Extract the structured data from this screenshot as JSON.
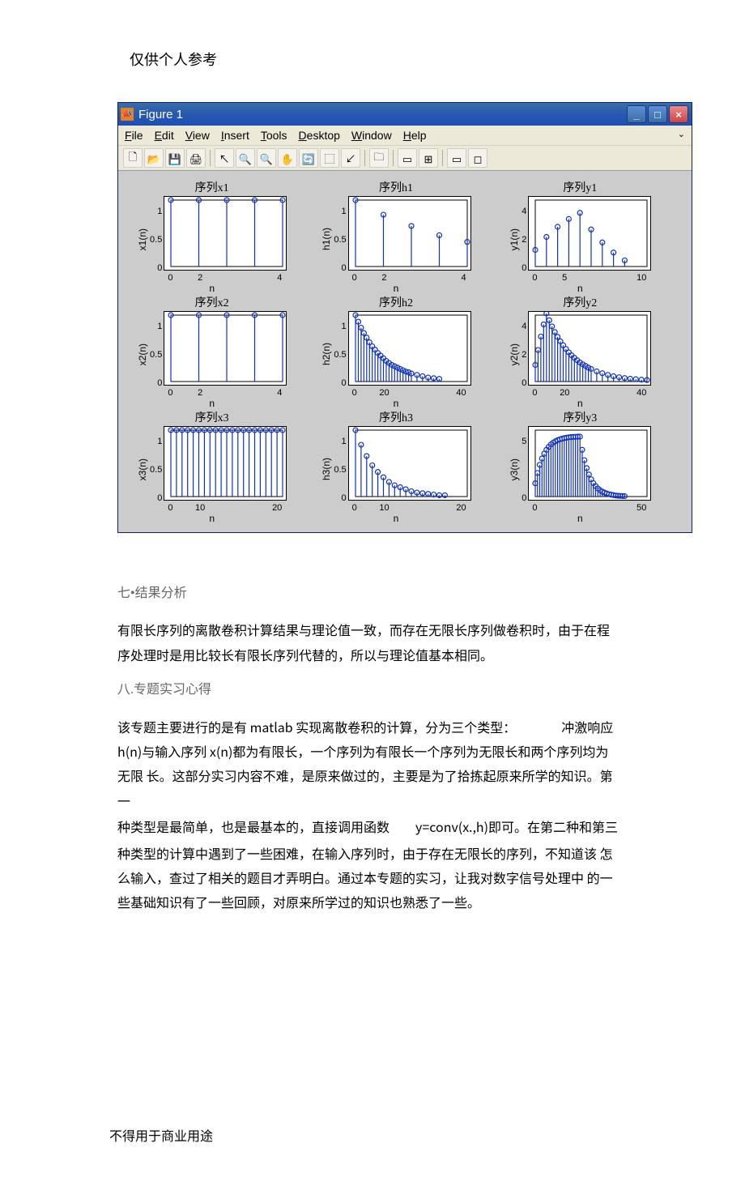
{
  "header_note": "仅供个人参考",
  "footer_note": "不得用于商业用途",
  "window": {
    "icon_letter": "📣",
    "title": "Figure 1",
    "buttons": {
      "min": "_",
      "max": "□",
      "close": "×"
    }
  },
  "menubar": {
    "items": [
      "File",
      "Edit",
      "View",
      "Insert",
      "Tools",
      "Desktop",
      "Window",
      "Help"
    ],
    "underlines": [
      0,
      0,
      0,
      0,
      0,
      0,
      0,
      0
    ]
  },
  "toolbar": {
    "icons": [
      "🗋",
      "📂",
      "💾",
      "🖨",
      "|",
      "↖",
      "🔍",
      "🔍",
      "✋",
      "🔄",
      "⬚",
      "↙",
      "|",
      "🗀",
      "|",
      "▭",
      "⊞",
      "|",
      "▭",
      "◻"
    ]
  },
  "chart_colors": {
    "series": "#1030c0",
    "axis": "#000000",
    "bg": "#ffffff",
    "fig_bg": "#cccccc"
  },
  "subplots": [
    {
      "title": "序列x1",
      "ylabel": "x1(n)",
      "xlabel": "n",
      "xlim": [
        0,
        4
      ],
      "ylim": [
        0,
        1
      ],
      "xticks": [
        0,
        2,
        4
      ],
      "yticks": [
        0,
        0.5,
        1
      ],
      "stems": [
        [
          0,
          1
        ],
        [
          1,
          1
        ],
        [
          2,
          1
        ],
        [
          3,
          1
        ],
        [
          4,
          1
        ]
      ]
    },
    {
      "title": "序列h1",
      "ylabel": "h1(n)",
      "xlabel": "n",
      "xlim": [
        0,
        4
      ],
      "ylim": [
        0,
        1
      ],
      "xticks": [
        0,
        2,
        4
      ],
      "yticks": [
        0,
        0.5,
        1
      ],
      "stems": [
        [
          0,
          1
        ],
        [
          1,
          0.78
        ],
        [
          2,
          0.61
        ],
        [
          3,
          0.47
        ],
        [
          4,
          0.37
        ]
      ]
    },
    {
      "title": "序列y1",
      "ylabel": "y1(n)",
      "xlabel": "n",
      "xlim": [
        0,
        10
      ],
      "ylim": [
        0,
        4
      ],
      "xticks": [
        0,
        5,
        10
      ],
      "yticks": [
        0,
        2,
        4
      ],
      "stems": [
        [
          0,
          1.0
        ],
        [
          1,
          1.78
        ],
        [
          2,
          2.39
        ],
        [
          3,
          2.86
        ],
        [
          4,
          3.23
        ],
        [
          5,
          2.23
        ],
        [
          6,
          1.45
        ],
        [
          7,
          0.84
        ],
        [
          8,
          0.37
        ]
      ]
    },
    {
      "title": "序列x2",
      "ylabel": "x2(n)",
      "xlabel": "n",
      "xlim": [
        0,
        4
      ],
      "ylim": [
        0,
        1
      ],
      "xticks": [
        0,
        2,
        4
      ],
      "yticks": [
        0,
        0.5,
        1
      ],
      "stems": [
        [
          0,
          1
        ],
        [
          1,
          1
        ],
        [
          2,
          1
        ],
        [
          3,
          1
        ],
        [
          4,
          1
        ]
      ]
    },
    {
      "title": "序列h2",
      "ylabel": "h2(n)",
      "xlabel": "n",
      "xlim": [
        0,
        40
      ],
      "ylim": [
        0,
        1
      ],
      "xticks": [
        0,
        20,
        40
      ],
      "yticks": [
        0,
        0.5,
        1
      ],
      "stems": [
        [
          0,
          1
        ],
        [
          1,
          0.9
        ],
        [
          2,
          0.81
        ],
        [
          3,
          0.73
        ],
        [
          4,
          0.66
        ],
        [
          5,
          0.59
        ],
        [
          6,
          0.53
        ],
        [
          7,
          0.48
        ],
        [
          8,
          0.43
        ],
        [
          9,
          0.39
        ],
        [
          10,
          0.35
        ],
        [
          11,
          0.31
        ],
        [
          12,
          0.28
        ],
        [
          13,
          0.25
        ],
        [
          14,
          0.23
        ],
        [
          15,
          0.21
        ],
        [
          16,
          0.19
        ],
        [
          17,
          0.17
        ],
        [
          18,
          0.15
        ],
        [
          19,
          0.14
        ],
        [
          20,
          0.12
        ],
        [
          22,
          0.1
        ],
        [
          24,
          0.08
        ],
        [
          26,
          0.06
        ],
        [
          28,
          0.05
        ],
        [
          30,
          0.04
        ]
      ]
    },
    {
      "title": "序列y2",
      "ylabel": "y2(n)",
      "xlabel": "n",
      "xlim": [
        0,
        40
      ],
      "ylim": [
        0,
        4
      ],
      "xticks": [
        0,
        20,
        40
      ],
      "yticks": [
        0,
        2,
        4
      ],
      "stems": [
        [
          0,
          1.0
        ],
        [
          1,
          1.9
        ],
        [
          2,
          2.71
        ],
        [
          3,
          3.44
        ],
        [
          4,
          4.1
        ],
        [
          5,
          3.69
        ],
        [
          6,
          3.32
        ],
        [
          7,
          2.98
        ],
        [
          8,
          2.69
        ],
        [
          9,
          2.42
        ],
        [
          10,
          2.18
        ],
        [
          11,
          1.96
        ],
        [
          12,
          1.76
        ],
        [
          13,
          1.58
        ],
        [
          14,
          1.43
        ],
        [
          15,
          1.28
        ],
        [
          16,
          1.15
        ],
        [
          17,
          1.04
        ],
        [
          18,
          0.94
        ],
        [
          19,
          0.84
        ],
        [
          20,
          0.76
        ],
        [
          22,
          0.61
        ],
        [
          24,
          0.5
        ],
        [
          26,
          0.4
        ],
        [
          28,
          0.32
        ],
        [
          30,
          0.26
        ],
        [
          32,
          0.21
        ],
        [
          34,
          0.17
        ],
        [
          36,
          0.14
        ],
        [
          38,
          0.11
        ],
        [
          40,
          0.09
        ]
      ]
    },
    {
      "title": "序列x3",
      "ylabel": "x3(n)",
      "xlabel": "n",
      "xlim": [
        0,
        20
      ],
      "ylim": [
        0,
        1
      ],
      "xticks": [
        0,
        10,
        20
      ],
      "yticks": [
        0,
        0.5,
        1
      ],
      "stems": [
        [
          0,
          1
        ],
        [
          1,
          1
        ],
        [
          2,
          1
        ],
        [
          3,
          1
        ],
        [
          4,
          1
        ],
        [
          5,
          1
        ],
        [
          6,
          1
        ],
        [
          7,
          1
        ],
        [
          8,
          1
        ],
        [
          9,
          1
        ],
        [
          10,
          1
        ],
        [
          11,
          1
        ],
        [
          12,
          1
        ],
        [
          13,
          1
        ],
        [
          14,
          1
        ],
        [
          15,
          1
        ],
        [
          16,
          1
        ],
        [
          17,
          1
        ],
        [
          18,
          1
        ],
        [
          19,
          1
        ],
        [
          20,
          1
        ]
      ]
    },
    {
      "title": "序列h3",
      "ylabel": "h3(n)",
      "xlabel": "n",
      "xlim": [
        0,
        20
      ],
      "ylim": [
        0,
        1
      ],
      "xticks": [
        0,
        10,
        20
      ],
      "yticks": [
        0,
        0.5,
        1
      ],
      "stems": [
        [
          0,
          1
        ],
        [
          1,
          0.78
        ],
        [
          2,
          0.61
        ],
        [
          3,
          0.47
        ],
        [
          4,
          0.37
        ],
        [
          5,
          0.29
        ],
        [
          6,
          0.22
        ],
        [
          7,
          0.17
        ],
        [
          8,
          0.14
        ],
        [
          9,
          0.11
        ],
        [
          10,
          0.08
        ],
        [
          11,
          0.06
        ],
        [
          12,
          0.05
        ],
        [
          13,
          0.04
        ],
        [
          14,
          0.03
        ],
        [
          15,
          0.02
        ],
        [
          16,
          0.02
        ]
      ]
    },
    {
      "title": "序列y3",
      "ylabel": "y3(n)",
      "xlabel": "n",
      "xlim": [
        0,
        50
      ],
      "ylim": [
        0,
        5
      ],
      "xticks": [
        0,
        50
      ],
      "yticks": [
        0,
        5
      ],
      "stems": [
        [
          0,
          1.0
        ],
        [
          1,
          1.78
        ],
        [
          2,
          2.39
        ],
        [
          3,
          2.86
        ],
        [
          4,
          3.23
        ],
        [
          5,
          3.52
        ],
        [
          6,
          3.74
        ],
        [
          7,
          3.92
        ],
        [
          8,
          4.06
        ],
        [
          9,
          4.16
        ],
        [
          10,
          4.25
        ],
        [
          11,
          4.31
        ],
        [
          12,
          4.36
        ],
        [
          13,
          4.4
        ],
        [
          14,
          4.43
        ],
        [
          15,
          4.46
        ],
        [
          16,
          4.48
        ],
        [
          17,
          4.49
        ],
        [
          18,
          4.5
        ],
        [
          19,
          4.51
        ],
        [
          20,
          4.51
        ],
        [
          21,
          3.52
        ],
        [
          22,
          2.74
        ],
        [
          23,
          2.14
        ],
        [
          24,
          1.66
        ],
        [
          25,
          1.3
        ],
        [
          26,
          1.01
        ],
        [
          27,
          0.79
        ],
        [
          28,
          0.61
        ],
        [
          29,
          0.48
        ],
        [
          30,
          0.37
        ],
        [
          31,
          0.29
        ],
        [
          32,
          0.23
        ],
        [
          33,
          0.18
        ],
        [
          34,
          0.14
        ],
        [
          35,
          0.11
        ],
        [
          36,
          0.08
        ],
        [
          37,
          0.06
        ],
        [
          38,
          0.05
        ],
        [
          39,
          0.04
        ],
        [
          40,
          0.03
        ]
      ]
    }
  ],
  "doc": {
    "h1": "七•结果分析",
    "p1": "有限长序列的离散卷积计算结果与理论值一致，而存在无限长序列做卷积时，由于在程序处理时是用比较长有限长序列代替的，所以与理论值基本相同。",
    "h2": "八.专题实习心得",
    "p2_a": "该专题主要进行的是有 matlab 实现离散卷积的计算，分为三个类型：　　　　冲激响应 h(n)与输入序列 x(n)都为有限长，一个序列为有限长一个序列为无限长和两个序列均为无限 长。这部分实习内容不难，是原来做过的，主要是为了拾拣起原来所学的知识。第一",
    "p2_b": "种类型是最简单，也是最基本的，直接调用函数　　y=conv(x.,h)即可。在第二种和第三",
    "p2_c": "种类型的计算中遇到了一些困难，在输入序列时，由于存在无限长的序列，不知道该 怎么输入，查过了相关的题目才弄明白。通过本专题的实习，让我对数字信号处理中 的一些基础知识有了一些回顾，对原来所学过的知识也熟悉了一些。"
  }
}
